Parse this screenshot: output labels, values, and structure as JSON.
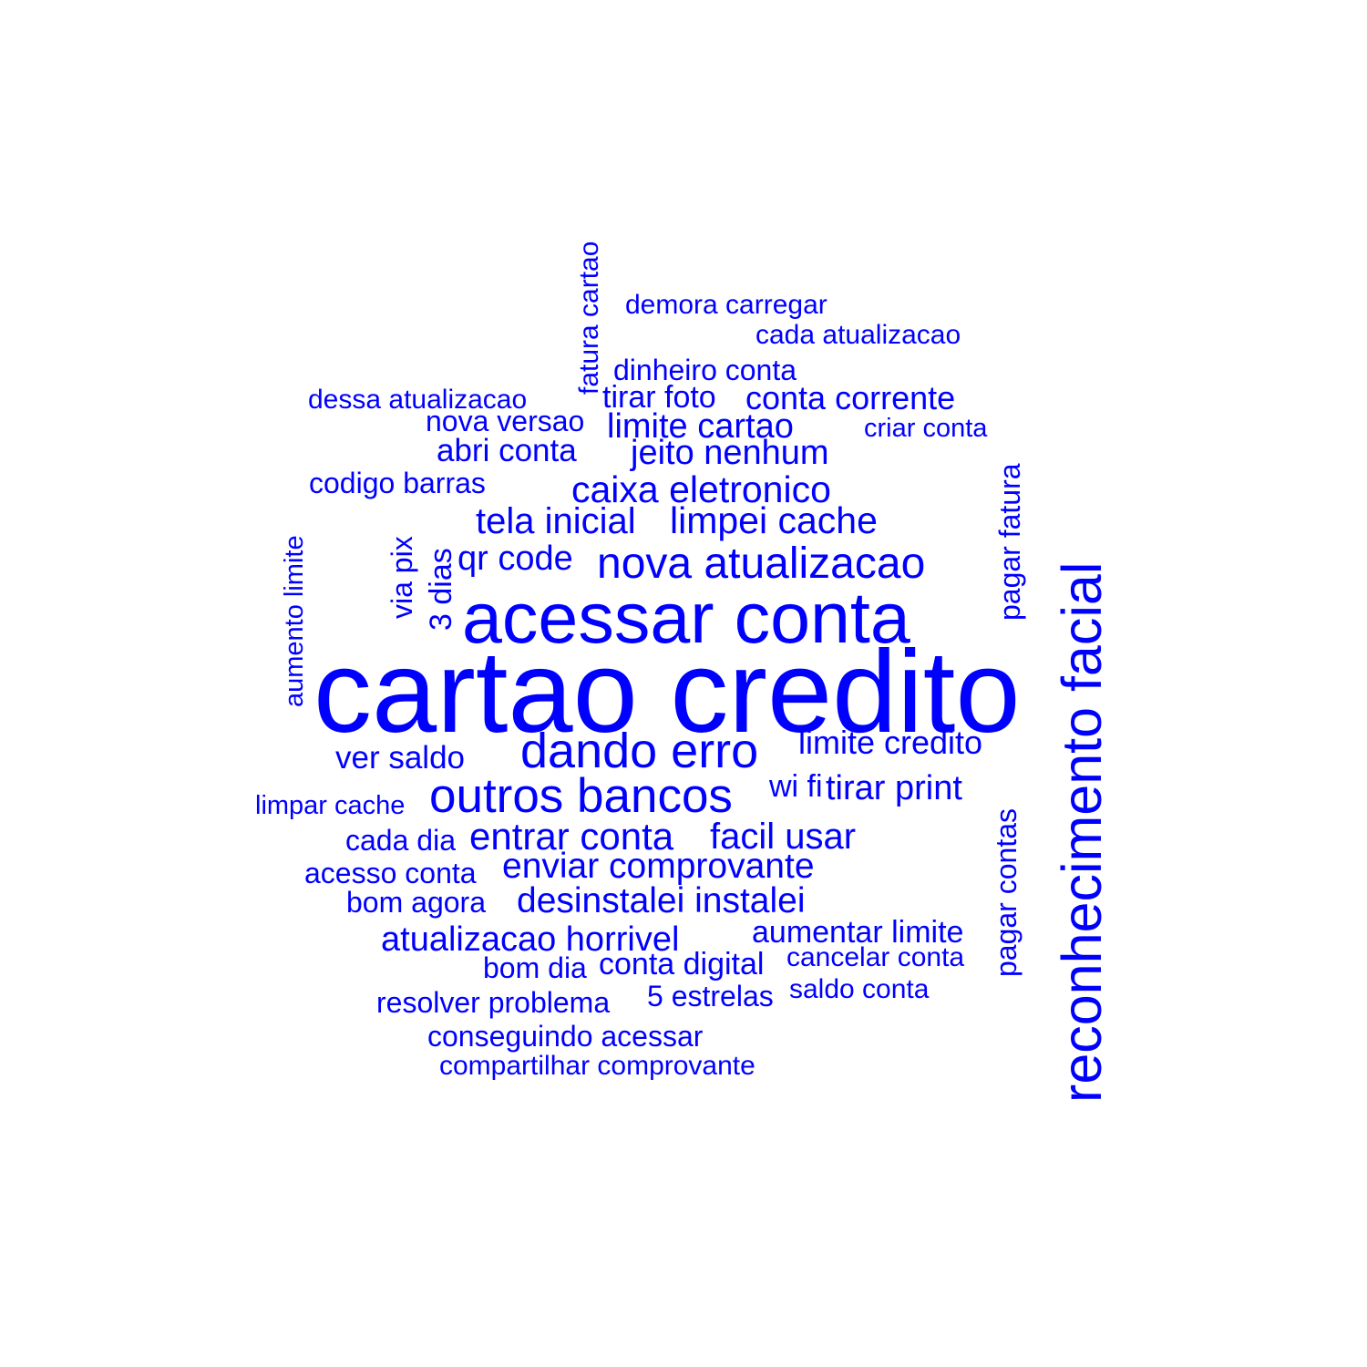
{
  "style": {
    "word_color": "#0000ff",
    "background": "#ffffff"
  },
  "words": {
    "cartao_credito": "cartao credito",
    "acessar_conta": "acessar conta",
    "reconhecimento_facial": "reconhecimento facial",
    "nova_atualizacao": "nova atualizacao",
    "dando_erro": "dando erro",
    "outros_bancos": "outros bancos",
    "caixa_eletronico": "caixa eletronico",
    "limpei_cache": "limpei cache",
    "tela_inicial": "tela inicial",
    "entrar_conta": "entrar conta",
    "facil_usar": "facil usar",
    "enviar_comprovante": "enviar comprovante",
    "desinstalei_instalei": "desinstalei instalei",
    "atualizacao_horrivel": "atualizacao horrivel",
    "limite_cartao": "limite cartao",
    "jeito_nenhum": "jeito nenhum",
    "qr_code": "qr code",
    "conta_corrente": "conta corrente",
    "limite_credito": "limite credito",
    "tirar_print": "tirar print",
    "aumentar_limite": "aumentar limite",
    "conta_digital": "conta digital",
    "abri_conta": "abri conta",
    "ver_saldo": "ver saldo",
    "tirar_foto": "tirar foto",
    "wi_fi": "wi fi",
    "dinheiro_conta": "dinheiro conta",
    "nova_versao": "nova versao",
    "codigo_barras": "codigo barras",
    "acesso_conta": "acesso conta",
    "cada_dia": "cada dia",
    "bom_agora": "bom agora",
    "bom_dia": "bom dia",
    "cancelar_conta": "cancelar conta",
    "saldo_conta": "saldo conta",
    "cinco_estrelas": "5 estrelas",
    "resolver_problema": "resolver problema",
    "conseguindo_acessar": "conseguindo acessar",
    "compartilhar_comprovante": "compartilhar comprovante",
    "demora_carregar": "demora carregar",
    "cada_atualizacao": "cada atualizacao",
    "dessa_atualizacao": "dessa atualizacao",
    "criar_conta": "criar conta",
    "limpar_cache": "limpar cache",
    "fatura_cartao": "fatura cartao",
    "pagar_fatura": "pagar fatura",
    "pagar_contas": "pagar contas",
    "aumento_limite": "aumento limite",
    "via_pix": "via pix",
    "tres_dias": "3 dias"
  }
}
